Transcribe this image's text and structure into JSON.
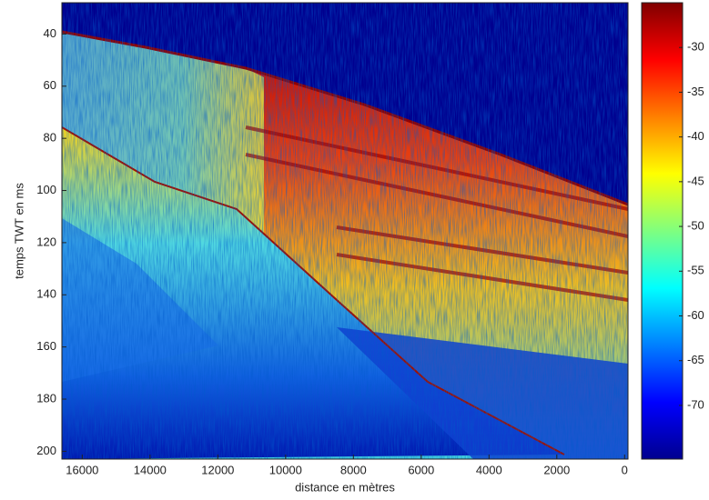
{
  "chart_data": {
    "type": "heatmap",
    "xlabel": "distance en mètres",
    "ylabel": "temps TWT en ms",
    "xlim": [
      16600,
      -100
    ],
    "xticks": [
      16000,
      14000,
      12000,
      10000,
      8000,
      6000,
      4000,
      2000,
      0
    ],
    "ylim": [
      28,
      203
    ],
    "yticks": [
      40,
      60,
      80,
      100,
      120,
      140,
      160,
      180,
      200
    ],
    "colorbar": {
      "clim": [
        -76,
        -25
      ],
      "ticks": [
        -30,
        -35,
        -40,
        -45,
        -50,
        -55,
        -60,
        -65,
        -70
      ]
    }
  }
}
